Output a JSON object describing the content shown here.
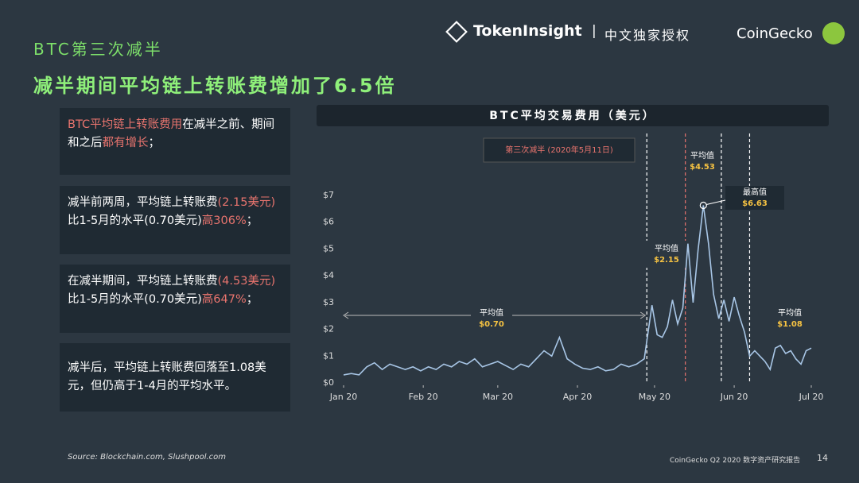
{
  "header": {
    "section": "BTC第三次减半",
    "headline": "减半期间平均链上转账费增加了6.5倍",
    "logo": "TokenInsight",
    "divider": "|",
    "license": "中文独家授权",
    "brand": "CoinGecko"
  },
  "boxes": [
    [
      {
        "text": "BTC平均链上转账费用",
        "highlight": true
      },
      {
        "text": "在减半之前、期间和之后",
        "highlight": false
      },
      {
        "text": "都有增长",
        "highlight": true
      },
      {
        "text": "；",
        "highlight": false
      }
    ],
    [
      {
        "text": "减半前两周，平均链上转账费",
        "highlight": false
      },
      {
        "text": "(2.15美元)",
        "highlight": true
      },
      {
        "text": "比1-5月的水平(0.70美元)",
        "highlight": false
      },
      {
        "text": "高306%",
        "highlight": true
      },
      {
        "text": "；",
        "highlight": false
      }
    ],
    [
      {
        "text": "在减半期间，平均链上转账费",
        "highlight": false
      },
      {
        "text": "(4.53美元)",
        "highlight": true
      },
      {
        "text": "比1-5月的水平(0.70美元)",
        "highlight": false
      },
      {
        "text": "高647%",
        "highlight": true
      },
      {
        "text": "；",
        "highlight": false
      }
    ],
    [
      {
        "text": "减半后，平均链上转账费回落至1.08美元，但仍高于1-4月的平均水平。",
        "highlight": false
      }
    ]
  ],
  "footer": {
    "source": "Source: Blockchain.com, Slushpool.com",
    "report": "CoinGecko Q2 2020 数字资产研究报告",
    "page": "14"
  },
  "chart_data": {
    "type": "line",
    "title": "BTC平均交易费用（美元）",
    "x": [
      0,
      3,
      6,
      9,
      12,
      15,
      18,
      21,
      24,
      27,
      30,
      33,
      36,
      39,
      42,
      45,
      48,
      51,
      54,
      57,
      60,
      63,
      66,
      69,
      72,
      75,
      78,
      81,
      84,
      87,
      90,
      93,
      96,
      99,
      102,
      105,
      108,
      111,
      114,
      117,
      120,
      122,
      124,
      126,
      128,
      130,
      132,
      134,
      136,
      138,
      140,
      142,
      144,
      146,
      148,
      150,
      152,
      154,
      156,
      158,
      160,
      162,
      164,
      166,
      168,
      170,
      172,
      174,
      176,
      178,
      180,
      182
    ],
    "series": [
      {
        "color": "#a8c6e6",
        "values": [
          0.3,
          0.35,
          0.3,
          0.6,
          0.75,
          0.5,
          0.7,
          0.6,
          0.5,
          0.6,
          0.45,
          0.6,
          0.5,
          0.7,
          0.6,
          0.8,
          0.7,
          0.9,
          0.6,
          0.7,
          0.8,
          0.65,
          0.5,
          0.7,
          0.6,
          0.9,
          1.2,
          1.0,
          1.7,
          0.9,
          0.7,
          0.55,
          0.5,
          0.6,
          0.45,
          0.5,
          0.7,
          0.6,
          0.7,
          0.9,
          2.9,
          1.8,
          1.7,
          2.1,
          3.1,
          2.2,
          2.8,
          5.2,
          3.0,
          5.0,
          6.63,
          5.2,
          3.3,
          2.4,
          3.1,
          2.3,
          3.2,
          2.5,
          1.9,
          1.0,
          1.2,
          1.0,
          0.8,
          0.5,
          1.3,
          1.4,
          1.1,
          1.2,
          0.9,
          0.7,
          1.2,
          1.3
        ]
      }
    ],
    "xlim": [
      0,
      182
    ],
    "xticks": [
      {
        "value": 0,
        "label": "Jan 20"
      },
      {
        "value": 31,
        "label": "Feb 20"
      },
      {
        "value": 60,
        "label": "Mar 20"
      },
      {
        "value": 91,
        "label": "Apr 20"
      },
      {
        "value": 121,
        "label": "May 20"
      },
      {
        "value": 152,
        "label": "Jun 20"
      },
      {
        "value": 182,
        "label": "Jul 20"
      }
    ],
    "ylim": [
      0,
      7
    ],
    "yticks": [
      {
        "value": 0,
        "label": "$0"
      },
      {
        "value": 1,
        "label": "$1"
      },
      {
        "value": 2,
        "label": "$2"
      },
      {
        "value": 3,
        "label": "$3"
      },
      {
        "value": 4,
        "label": "$4"
      },
      {
        "value": 5,
        "label": "$5"
      },
      {
        "value": 6,
        "label": "$6"
      },
      {
        "value": 7,
        "label": "$7"
      }
    ],
    "vlines": [
      {
        "x": 118,
        "color": "#ffffff"
      },
      {
        "x": 133,
        "color": "#e8746e"
      },
      {
        "x": 147,
        "color": "#ffffff"
      },
      {
        "x": 158,
        "color": "#ffffff"
      }
    ],
    "halving_label": "第三次减半 (2020年5月11日)",
    "annotations": [
      {
        "text": "平均值",
        "value": "$0.70"
      },
      {
        "text": "平均值",
        "value": "$2.15"
      },
      {
        "text": "平均值",
        "value": "$4.53"
      },
      {
        "text": "最高值",
        "value": "$6.63"
      },
      {
        "text": "平均值",
        "value": "$1.08"
      }
    ]
  }
}
